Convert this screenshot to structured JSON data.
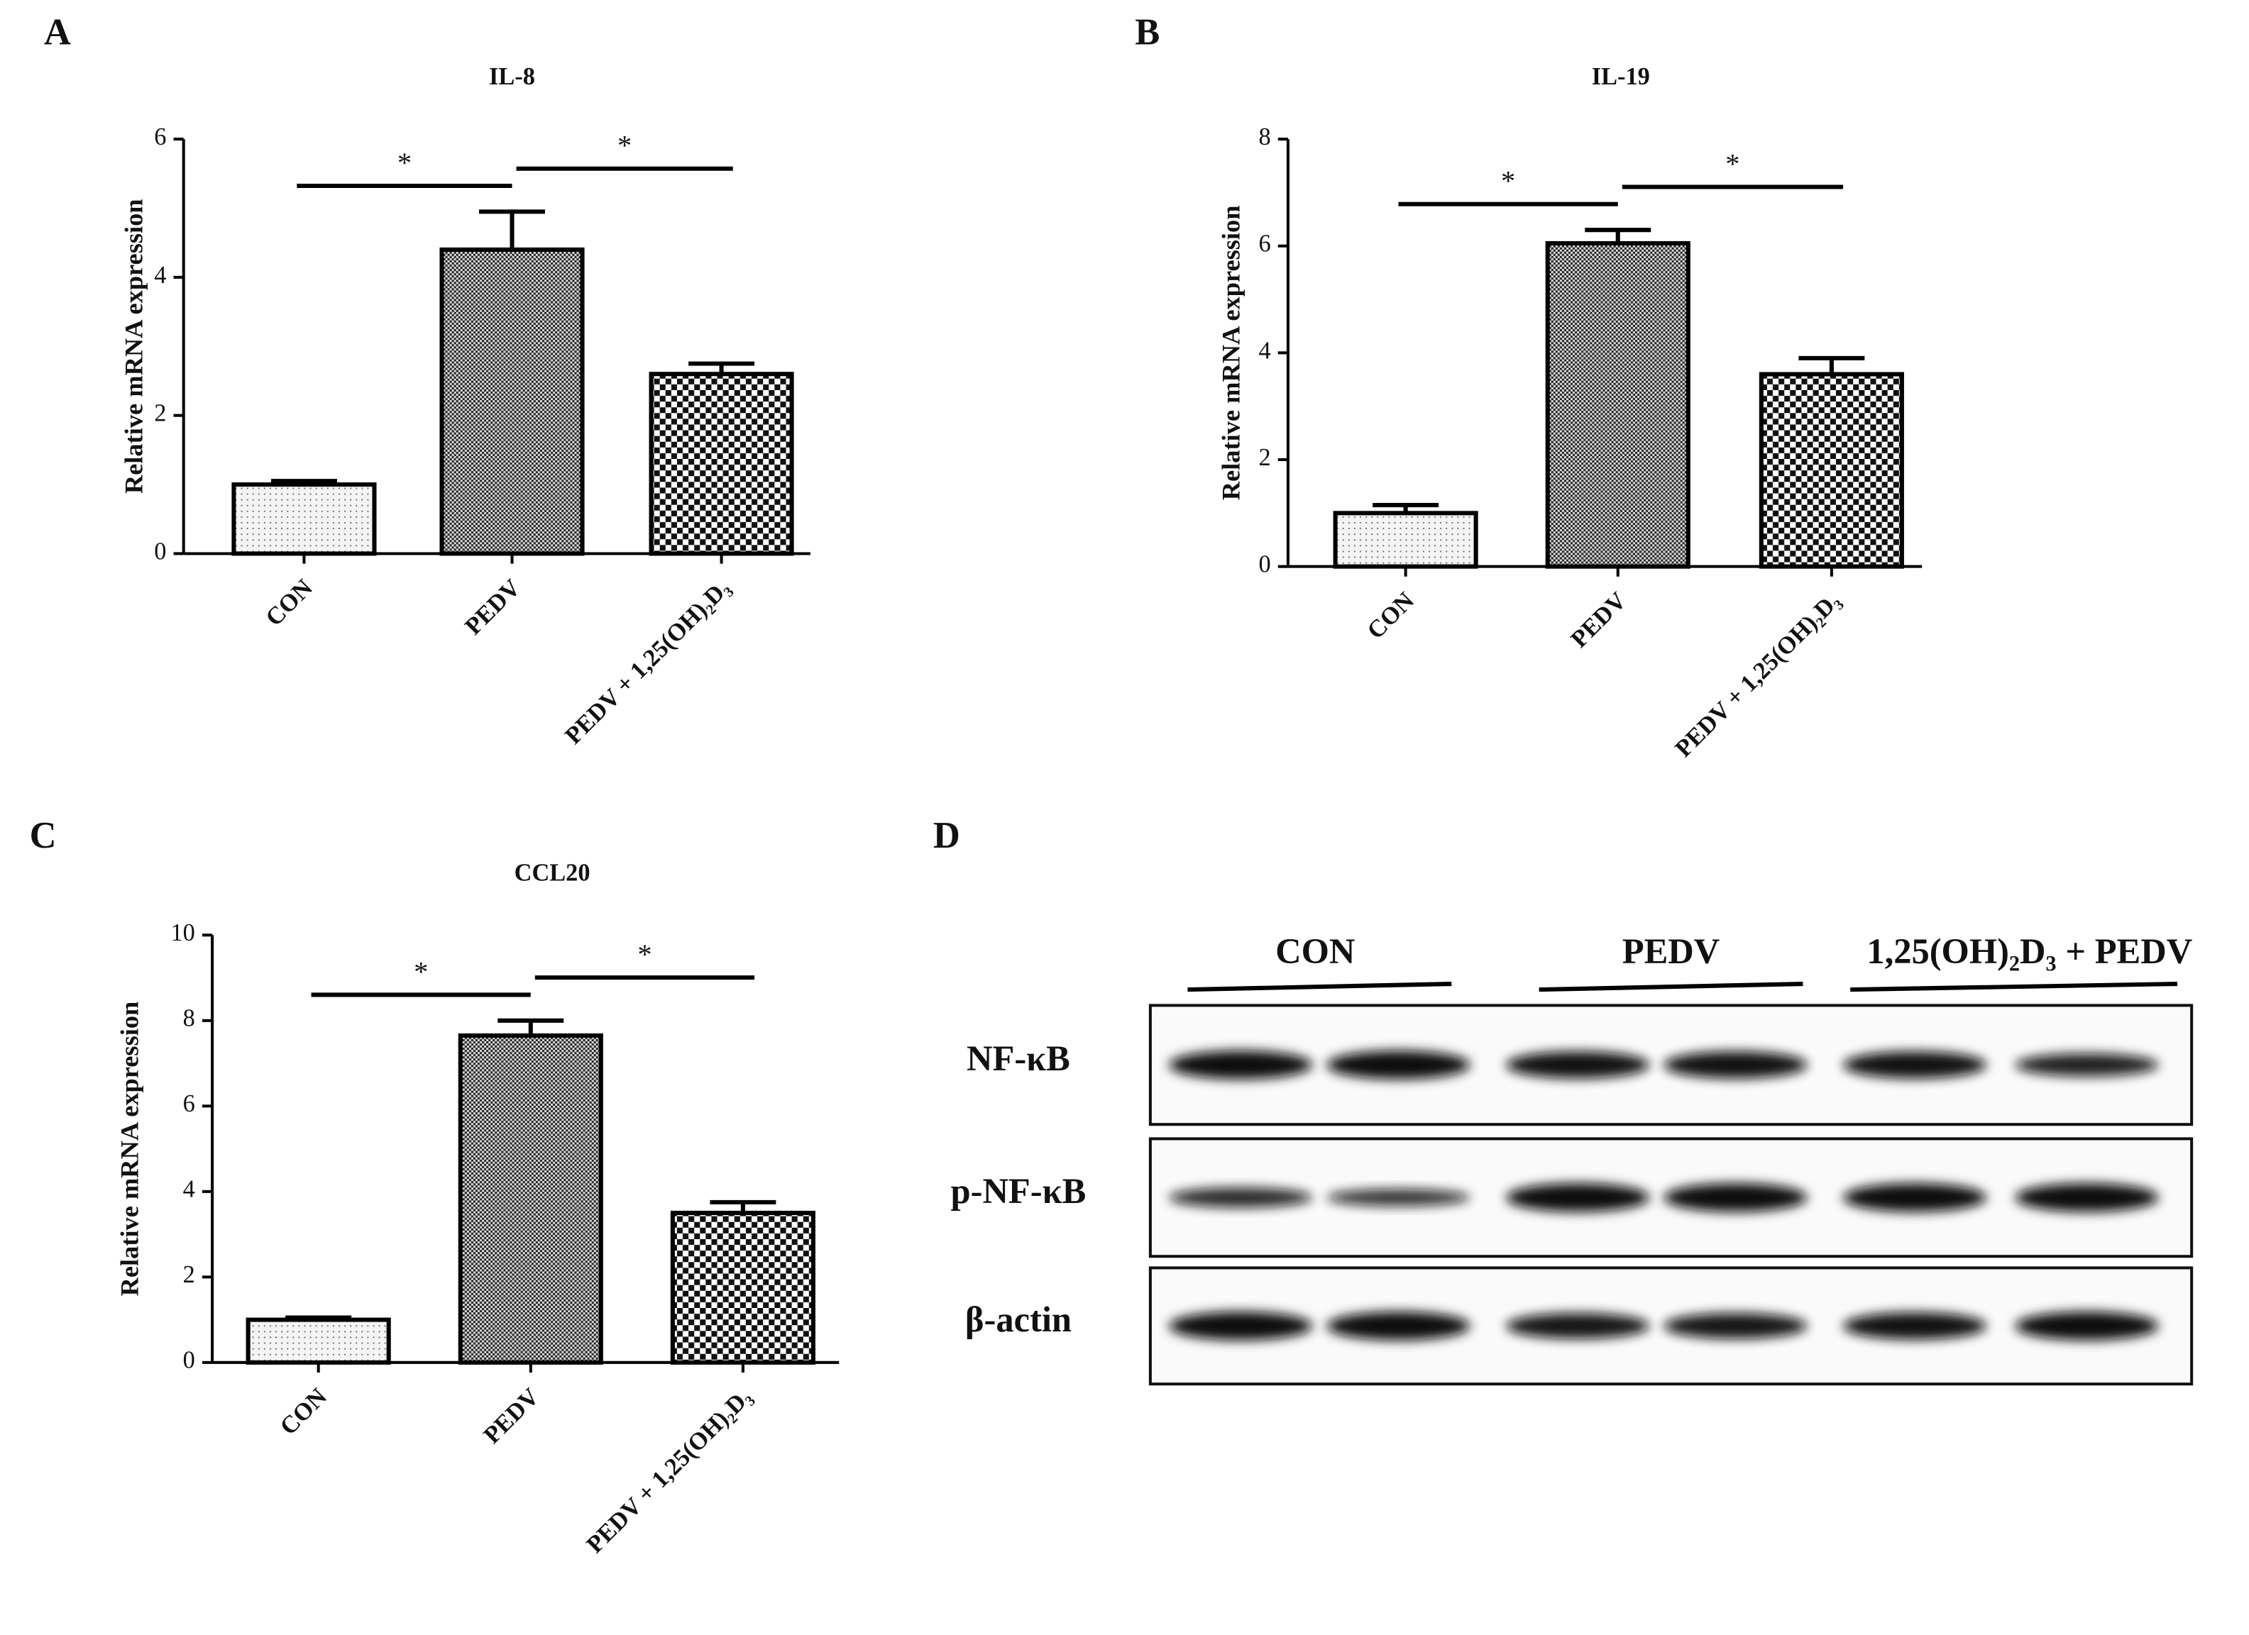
{
  "chart_data": [
    {
      "type": "bar",
      "panel": "A",
      "title": "IL-8",
      "y_label": "Relative mRNA expression",
      "categories": [
        "CON",
        "PEDV",
        "PEDV + 1,25(OH)₂D₃"
      ],
      "values": [
        1.0,
        4.4,
        2.6
      ],
      "errors": [
        0.05,
        0.55,
        0.15
      ],
      "ylim": [
        0,
        6
      ],
      "yticks": [
        0,
        2,
        4,
        6
      ],
      "annotations": [
        "*",
        "*"
      ]
    },
    {
      "type": "bar",
      "panel": "B",
      "title": "IL-19",
      "y_label": "Relative mRNA expression",
      "categories": [
        "CON",
        "PEDV",
        "PEDV + 1,25(OH)₂D₃"
      ],
      "values": [
        1.0,
        6.05,
        3.6
      ],
      "errors": [
        0.15,
        0.25,
        0.3
      ],
      "ylim": [
        0,
        8
      ],
      "yticks": [
        0,
        2,
        4,
        6,
        8
      ],
      "annotations": [
        "*",
        "*"
      ]
    },
    {
      "type": "bar",
      "panel": "C",
      "title": "CCL20",
      "y_label": "Relative mRNA expression",
      "categories": [
        "CON",
        "PEDV",
        "PEDV + 1,25(OH)₂D₃"
      ],
      "values": [
        1.0,
        7.65,
        3.5
      ],
      "errors": [
        0.05,
        0.35,
        0.25
      ],
      "ylim": [
        0,
        10
      ],
      "yticks": [
        0,
        2,
        4,
        6,
        8,
        10
      ],
      "annotations": [
        "*",
        "*"
      ]
    }
  ],
  "blot": {
    "panel": "D",
    "groups": [
      "CON",
      "PEDV",
      "1,25(OH)₂D₃ + PEDV"
    ],
    "rows": [
      "NF-κB",
      "p-NF-κB",
      "β-actin"
    ]
  }
}
